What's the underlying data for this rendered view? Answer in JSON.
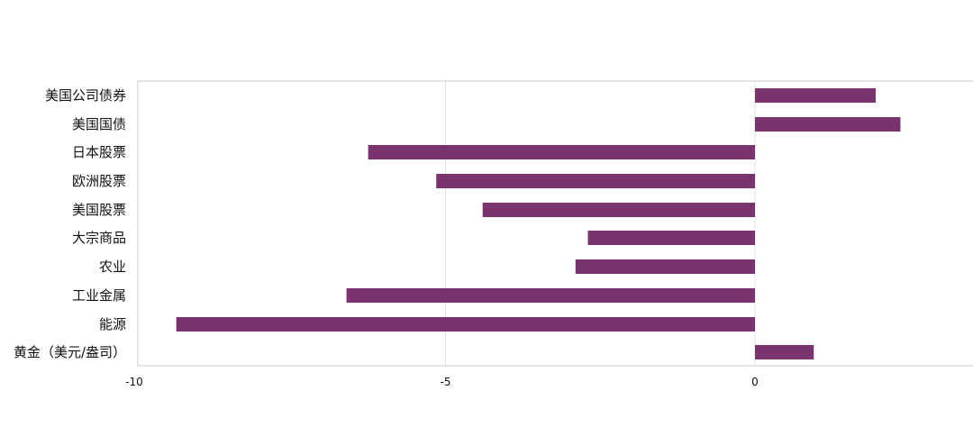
{
  "chart_data": {
    "type": "bar",
    "orientation": "horizontal",
    "categories": [
      "美国公司债券",
      "美国国债",
      "日本股票",
      "欧洲股票",
      "美国股票",
      "大宗商品",
      "农业",
      "工业金属",
      "能源",
      "黄金（美元/盎司）"
    ],
    "values": [
      1.95,
      2.35,
      -6.25,
      -5.15,
      -4.4,
      -2.7,
      -2.9,
      -6.6,
      -9.35,
      0.95
    ],
    "title": "",
    "xlabel": "",
    "ylabel": "",
    "xlim": [
      -10,
      3.5
    ],
    "xticks": [
      -10,
      -5,
      0
    ],
    "xtick_labels": [
      "-10",
      "-5",
      "0"
    ],
    "grid": "vertical",
    "legend": "none",
    "bar_color": "#7B3370",
    "grid_color": "#E3E3E3",
    "axis_color": "#C8C8C8"
  }
}
